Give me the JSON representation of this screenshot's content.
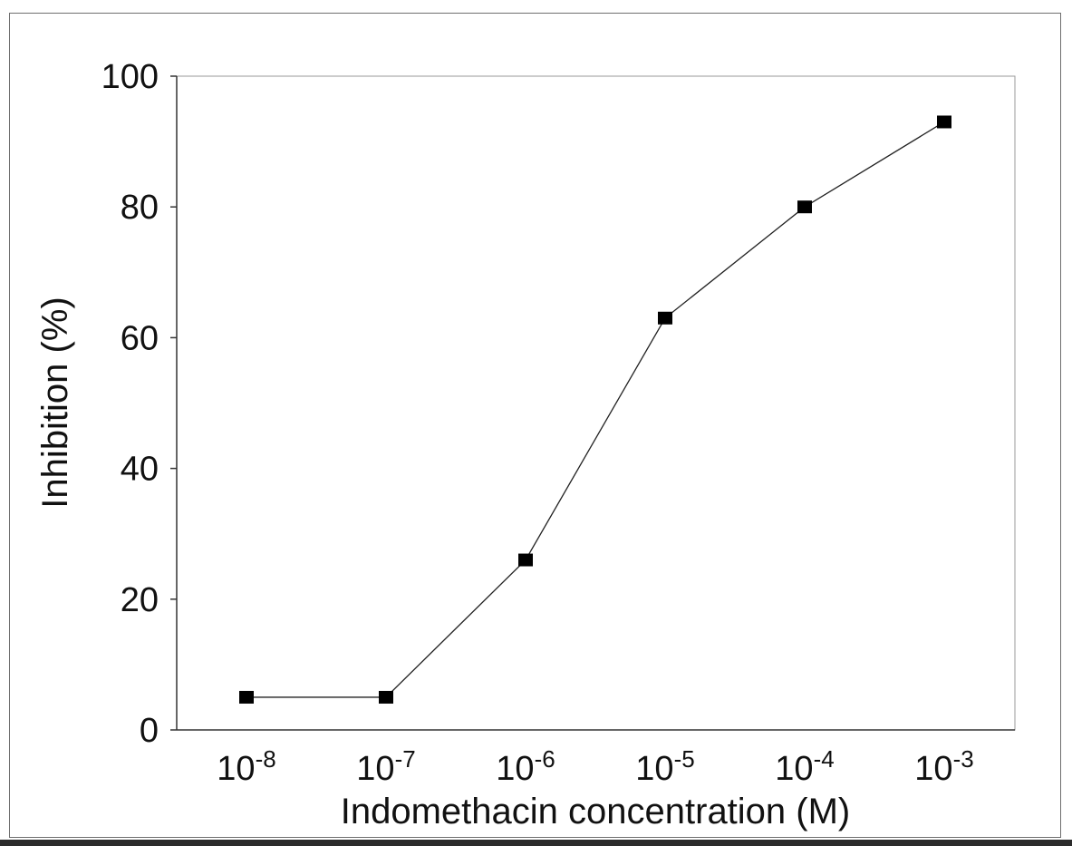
{
  "chart_data": {
    "type": "line",
    "xlabel": "Indomethacin concentration (M)",
    "ylabel": "Inhibition (%)",
    "x_scale": "log",
    "x": [
      1e-08,
      1e-07,
      1e-06,
      1e-05,
      0.0001,
      0.001
    ],
    "x_tick_labels": [
      {
        "base": "10",
        "exp": "-8"
      },
      {
        "base": "10",
        "exp": "-7"
      },
      {
        "base": "10",
        "exp": "-6"
      },
      {
        "base": "10",
        "exp": "-5"
      },
      {
        "base": "10",
        "exp": "-4"
      },
      {
        "base": "10",
        "exp": "-3"
      }
    ],
    "series": [
      {
        "values": [
          5,
          5,
          26,
          63,
          80,
          93
        ]
      }
    ],
    "y_ticks": [
      "0",
      "20",
      "40",
      "60",
      "80",
      "100"
    ],
    "ylim": [
      0,
      100
    ],
    "grid": false,
    "legend": "none",
    "colors": {
      "line": "#222222",
      "marker": "#000000",
      "axis": "#333333",
      "plot_border": "#9a9a9a"
    }
  }
}
